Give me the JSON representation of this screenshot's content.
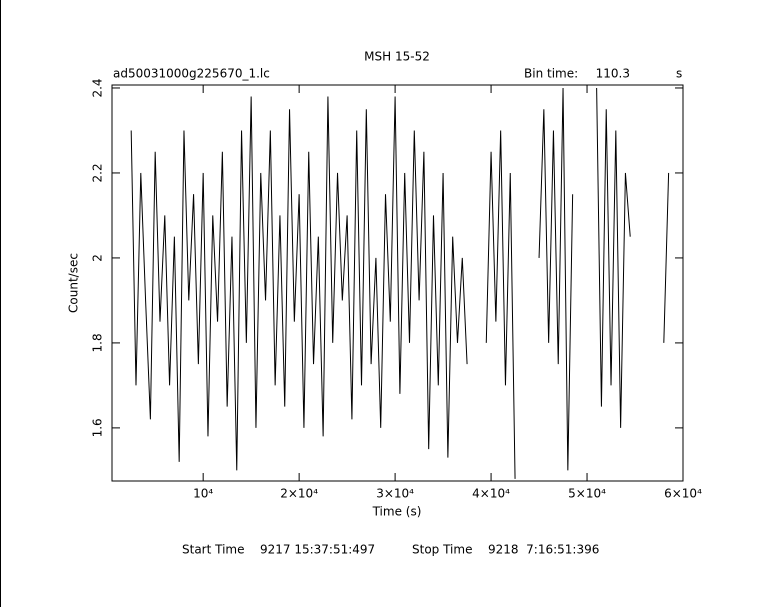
{
  "chart_data": {
    "type": "line",
    "title": "MSH 15-52",
    "file_name": "ad50031000g225670_1.lc",
    "bin_time_label": "Bin time:",
    "bin_time": 110.3,
    "bin_time_unit": "s",
    "x_label": "Time (s)",
    "y_label": "Count/sec",
    "start_time_label": "Start Time",
    "start_time": "9217 15:37:51:497",
    "stop_time_label": "Stop Time",
    "stop_time": "9218  7:16:51:396",
    "color": "#000000",
    "xlim": [
      500,
      60000
    ],
    "ylim": [
      1.475,
      2.407
    ],
    "xticks": [
      {
        "value": 10000,
        "label": "10⁴"
      },
      {
        "value": 20000,
        "label": "2×10⁴"
      },
      {
        "value": 30000,
        "label": "3×10⁴"
      },
      {
        "value": 40000,
        "label": "4×10⁴"
      },
      {
        "value": 50000,
        "label": "5×10⁴"
      },
      {
        "value": 60000,
        "label": "6×10⁴"
      }
    ],
    "yticks": [
      1.6,
      1.8,
      2,
      2.2,
      2.4
    ],
    "x": [
      2500,
      3000,
      3500,
      4000,
      4500,
      5000,
      5500,
      6000,
      6500,
      7000,
      7500,
      8000,
      8500,
      9000,
      9500,
      10000,
      10500,
      11000,
      11500,
      12000,
      12500,
      13000,
      13500,
      14000,
      14500,
      15000,
      15500,
      16000,
      16500,
      17000,
      17500,
      18000,
      18500,
      19000,
      19500,
      20000,
      20500,
      21000,
      21500,
      22000,
      22500,
      23000,
      23500,
      24000,
      24500,
      25000,
      25500,
      26000,
      26500,
      27000,
      27500,
      28000,
      28500,
      29000,
      29500,
      30000,
      30500,
      31000,
      31500,
      32000,
      32500,
      33000,
      33500,
      34000,
      34500,
      35000,
      35500,
      36000,
      36500,
      37000,
      37500,
      38500,
      39500,
      40000,
      40500,
      41000,
      41500,
      42000,
      42500,
      43500,
      45000,
      45500,
      46000,
      46500,
      47000,
      47500,
      48000,
      48500,
      50000,
      51000,
      51500,
      52000,
      52500,
      53000,
      53500,
      54000,
      54500,
      56000,
      58000,
      58500
    ],
    "values": [
      2.3,
      1.7,
      2.2,
      1.9,
      1.62,
      2.25,
      1.85,
      2.1,
      1.7,
      2.05,
      1.52,
      2.3,
      1.9,
      2.15,
      1.75,
      2.2,
      1.58,
      2.1,
      1.85,
      2.25,
      1.65,
      2.05,
      1.5,
      2.3,
      1.8,
      2.38,
      1.6,
      2.2,
      1.9,
      2.3,
      1.7,
      2.1,
      1.65,
      2.35,
      1.85,
      2.15,
      1.6,
      2.25,
      1.75,
      2.05,
      1.58,
      2.38,
      1.8,
      2.2,
      1.9,
      2.1,
      1.62,
      2.3,
      1.7,
      2.35,
      1.75,
      2.0,
      1.6,
      2.15,
      1.85,
      2.38,
      1.68,
      2.2,
      1.8,
      2.3,
      1.9,
      2.25,
      1.55,
      2.1,
      1.7,
      2.2,
      1.53,
      2.05,
      1.8,
      2.0,
      1.75,
      null,
      1.8,
      2.25,
      1.85,
      2.3,
      1.7,
      2.2,
      1.48,
      null,
      2.0,
      2.35,
      1.8,
      2.3,
      1.75,
      2.4,
      1.5,
      2.15,
      null,
      2.4,
      1.65,
      2.35,
      1.7,
      2.3,
      1.6,
      2.2,
      2.05,
      null,
      1.8,
      2.2
    ]
  }
}
